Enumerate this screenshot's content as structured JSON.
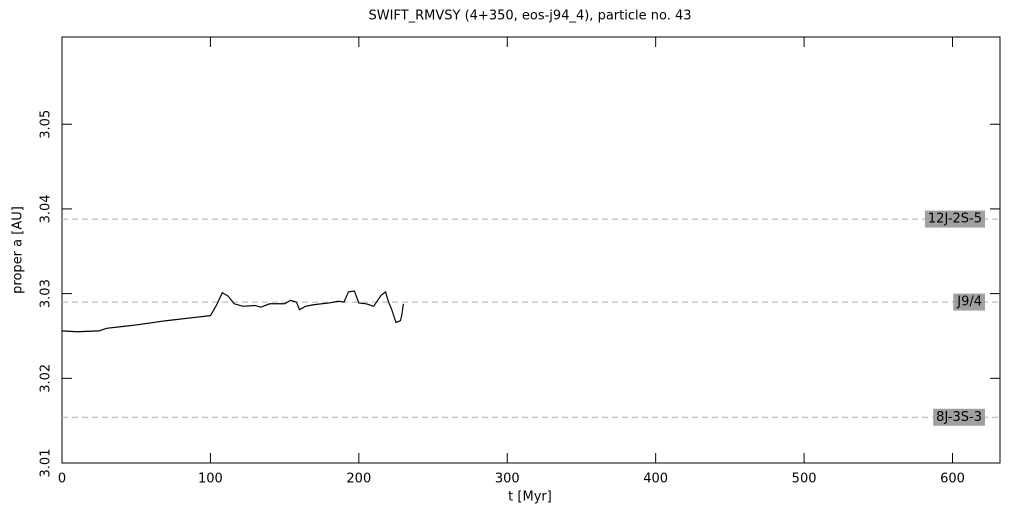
{
  "chart_data": {
    "type": "line",
    "title": "SWIFT_RMVSY (4+350, eos-j94_4), particle no. 43",
    "x_label": "t [Myr]",
    "y_label": "proper a [AU]",
    "xlim": [
      0,
      632
    ],
    "ylim": [
      3.01,
      3.0603
    ],
    "xticks": [
      0,
      100,
      200,
      300,
      400,
      500,
      600
    ],
    "yticks": [
      3.01,
      3.02,
      3.03,
      3.04,
      3.05
    ],
    "series": [
      {
        "color": "#000000",
        "x": [
          0,
          10,
          25,
          30,
          50,
          70,
          90,
          100,
          104,
          108,
          112,
          116,
          122,
          130,
          134,
          140,
          150,
          154,
          158,
          160,
          164,
          170,
          180,
          186,
          190,
          193,
          197,
          200,
          205,
          210,
          215,
          218,
          220,
          222,
          225,
          228,
          229,
          230
        ],
        "values": [
          3.0256,
          3.0255,
          3.0256,
          3.0259,
          3.0263,
          3.0268,
          3.0272,
          3.0274,
          3.0286,
          3.0301,
          3.0297,
          3.0288,
          3.0285,
          3.0286,
          3.0284,
          3.0288,
          3.0288,
          3.0292,
          3.029,
          3.0281,
          3.0285,
          3.0287,
          3.0289,
          3.0291,
          3.029,
          3.0302,
          3.0303,
          3.0289,
          3.0288,
          3.0285,
          3.0298,
          3.0302,
          3.029,
          3.0282,
          3.0266,
          3.0268,
          3.0275,
          3.0288
        ]
      }
    ],
    "resonances": [
      {
        "name": "12J-2S-5",
        "value": 3.0388
      },
      {
        "name": "J9/4",
        "value": 3.029
      },
      {
        "name": "8J-3S-3",
        "value": 3.0154
      }
    ],
    "resonance_color": "#b0b0b0",
    "label_box_color": "#a0a0a0"
  }
}
